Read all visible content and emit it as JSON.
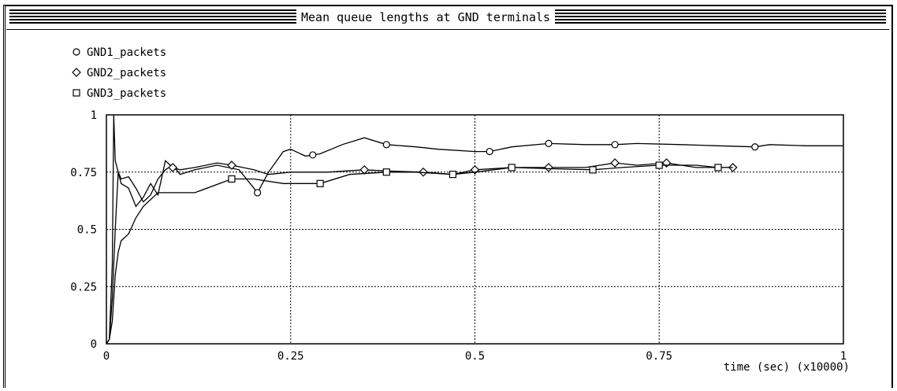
{
  "window": {
    "title": "Mean queue lengths at GND terminals"
  },
  "chart_data": {
    "type": "line",
    "title": "Mean queue lengths at GND terminals",
    "xlabel": "time (sec) (x10000)",
    "ylabel": "",
    "xlim": [
      0,
      1
    ],
    "ylim": [
      0,
      1
    ],
    "x_ticks": [
      "0",
      "0.25",
      "0.5",
      "0.75",
      "1"
    ],
    "y_ticks": [
      "0",
      "0.25",
      "0.5",
      "0.75",
      "1"
    ],
    "grid": true,
    "legend_position": "top-left",
    "series": [
      {
        "name": "GND1_packets",
        "marker": "circle",
        "x": [
          0,
          0.004,
          0.008,
          0.01,
          0.012,
          0.016,
          0.02,
          0.03,
          0.04,
          0.05,
          0.06,
          0.07,
          0.08,
          0.09,
          0.1,
          0.12,
          0.15,
          0.18,
          0.205,
          0.22,
          0.24,
          0.25,
          0.27,
          0.29,
          0.32,
          0.35,
          0.38,
          0.42,
          0.45,
          0.5,
          0.52,
          0.55,
          0.6,
          0.65,
          0.69,
          0.72,
          0.78,
          0.83,
          0.88,
          0.9,
          0.95,
          1.0
        ],
        "y": [
          0,
          0.02,
          0.35,
          1.0,
          0.8,
          0.75,
          0.72,
          0.73,
          0.68,
          0.62,
          0.65,
          0.72,
          0.76,
          0.78,
          0.74,
          0.76,
          0.78,
          0.76,
          0.66,
          0.75,
          0.84,
          0.85,
          0.82,
          0.83,
          0.87,
          0.9,
          0.87,
          0.86,
          0.85,
          0.84,
          0.84,
          0.86,
          0.875,
          0.87,
          0.87,
          0.875,
          0.87,
          0.865,
          0.86,
          0.87,
          0.865,
          0.865
        ],
        "marker_x": [
          0.205,
          0.28,
          0.38,
          0.52,
          0.6,
          0.69,
          0.88
        ]
      },
      {
        "name": "GND2_packets",
        "marker": "diamond",
        "x": [
          0,
          0.004,
          0.008,
          0.012,
          0.016,
          0.02,
          0.03,
          0.04,
          0.05,
          0.06,
          0.07,
          0.08,
          0.09,
          0.1,
          0.12,
          0.15,
          0.17,
          0.2,
          0.22,
          0.25,
          0.3,
          0.35,
          0.38,
          0.43,
          0.47,
          0.5,
          0.55,
          0.6,
          0.65,
          0.69,
          0.72,
          0.76,
          0.8,
          0.85
        ],
        "y": [
          0,
          0.02,
          0.2,
          0.5,
          0.75,
          0.7,
          0.68,
          0.6,
          0.64,
          0.7,
          0.65,
          0.8,
          0.77,
          0.76,
          0.77,
          0.79,
          0.78,
          0.76,
          0.74,
          0.75,
          0.75,
          0.76,
          0.755,
          0.75,
          0.74,
          0.76,
          0.77,
          0.77,
          0.77,
          0.79,
          0.78,
          0.79,
          0.77,
          0.77
        ],
        "marker_x": [
          0.09,
          0.17,
          0.35,
          0.43,
          0.5,
          0.6,
          0.69,
          0.76,
          0.85
        ]
      },
      {
        "name": "GND3_packets",
        "marker": "square",
        "x": [
          0,
          0.004,
          0.008,
          0.012,
          0.016,
          0.02,
          0.03,
          0.04,
          0.05,
          0.06,
          0.07,
          0.08,
          0.1,
          0.12,
          0.17,
          0.2,
          0.24,
          0.29,
          0.33,
          0.38,
          0.42,
          0.47,
          0.5,
          0.55,
          0.6,
          0.66,
          0.7,
          0.75,
          0.8,
          0.83,
          0.85
        ],
        "y": [
          0,
          0.02,
          0.1,
          0.3,
          0.4,
          0.45,
          0.48,
          0.55,
          0.6,
          0.63,
          0.66,
          0.66,
          0.66,
          0.66,
          0.72,
          0.72,
          0.7,
          0.7,
          0.74,
          0.75,
          0.75,
          0.74,
          0.75,
          0.77,
          0.765,
          0.76,
          0.77,
          0.78,
          0.78,
          0.77,
          0.77
        ],
        "marker_x": [
          0.17,
          0.29,
          0.38,
          0.47,
          0.55,
          0.66,
          0.75,
          0.83
        ]
      }
    ]
  }
}
